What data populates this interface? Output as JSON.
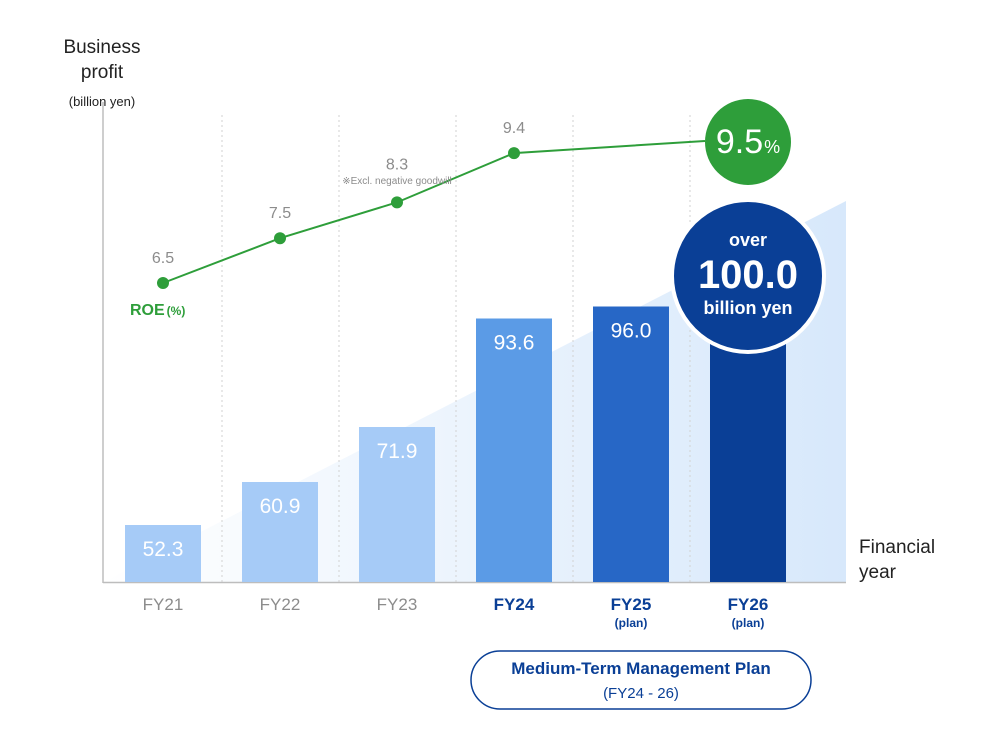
{
  "y_axis_label": {
    "line1": "Business",
    "line2": "profit",
    "unit": "(billion yen)"
  },
  "x_axis_label": {
    "line1": "Financial",
    "line2": "year"
  },
  "chart_data": {
    "type": "bar",
    "categories": [
      "FY21",
      "FY22",
      "FY23",
      "FY24",
      "FY25",
      "FY26"
    ],
    "category_subtitles": [
      "",
      "",
      "",
      "",
      "(plan)",
      "(plan)"
    ],
    "series": [
      {
        "values": [
          52.3,
          60.9,
          71.9,
          93.6,
          96.0,
          100.0
        ],
        "value_labels": [
          "52.3",
          "60.9",
          "71.9",
          "93.6",
          "96.0",
          ""
        ]
      },
      {
        "name": "ROE",
        "unit_label": "(%)",
        "type": "line",
        "values": [
          6.5,
          7.5,
          8.3,
          9.4,
          null,
          9.5
        ],
        "value_labels": [
          "6.5",
          "7.5",
          "8.3",
          "9.4",
          "",
          ""
        ]
      }
    ],
    "bar_colors": [
      "#a6cbf7",
      "#a6cbf7",
      "#a6cbf7",
      "#5b9be6",
      "#2767c6",
      "#0a3f96"
    ],
    "category_label_colors": [
      "#8c8c8c",
      "#8c8c8c",
      "#8c8c8c",
      "#0a3f96",
      "#0a3f96",
      "#0a3f96"
    ],
    "roe_color": "#2e9e3a",
    "grid": "vertical dotted",
    "annotations": {
      "fy23_note": "※Excl. negative goodwill",
      "target_roe_value": "9.5",
      "target_roe_unit": "%",
      "target_profit_line1": "over",
      "target_profit_line2": "100.0",
      "target_profit_line3": "billion yen"
    }
  },
  "plan_box": {
    "title": "Medium-Term Management Plan",
    "period": "(FY24 - 26)"
  },
  "colors": {
    "navy": "#0a3f96",
    "green": "#2e9e3a",
    "text_gray": "#8c8c8c",
    "wedge": "#dcebfb"
  }
}
